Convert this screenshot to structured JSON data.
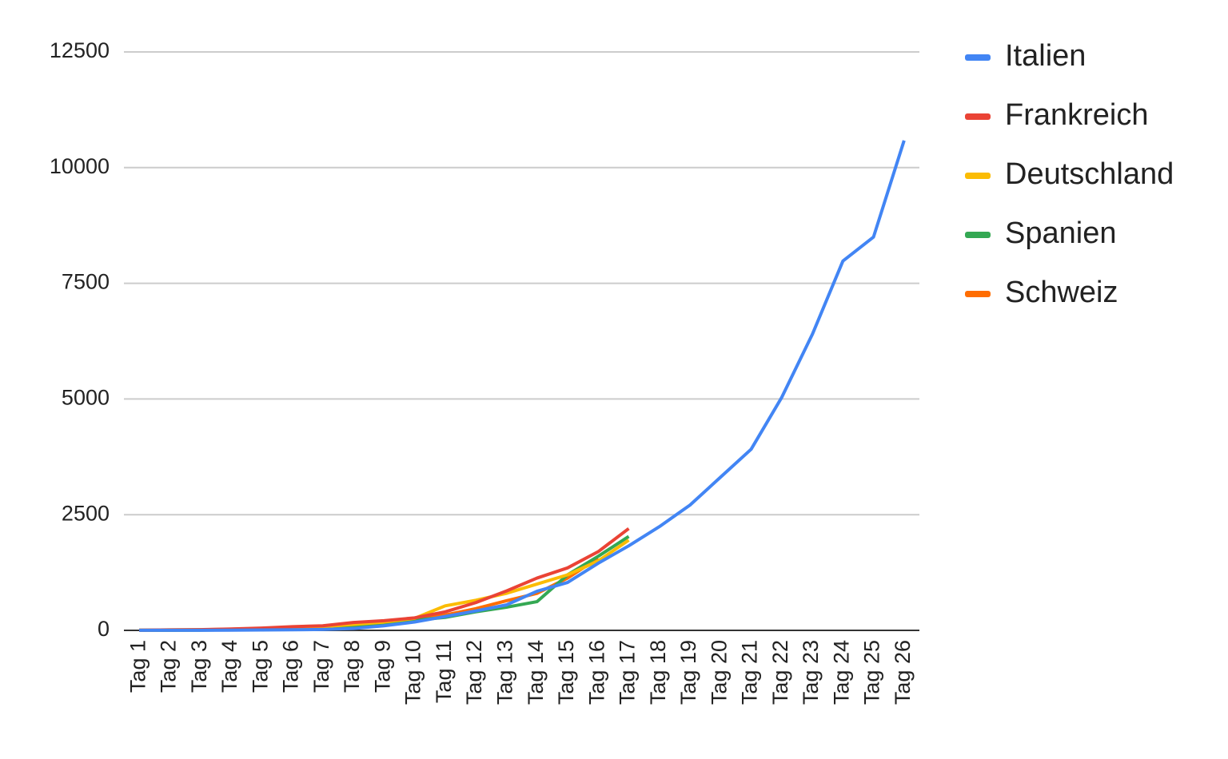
{
  "chart_data": {
    "type": "line",
    "categories": [
      "Tag 1",
      "Tag 2",
      "Tag 3",
      "Tag 4",
      "Tag 5",
      "Tag 6",
      "Tag 7",
      "Tag 8",
      "Tag 9",
      "Tag 10",
      "Tag 11",
      "Tag 12",
      "Tag 13",
      "Tag 14",
      "Tag 15",
      "Tag 16",
      "Tag 17",
      "Tag 18",
      "Tag 19",
      "Tag 20",
      "Tag 21",
      "Tag 22",
      "Tag 23",
      "Tag 24",
      "Tag 25",
      "Tag 26"
    ],
    "series": [
      {
        "name": "Italien",
        "color": "#4285f4",
        "values": [
          3,
          3,
          3,
          5,
          8,
          12,
          20,
          40,
          100,
          180,
          300,
          420,
          550,
          845,
          1035,
          1450,
          1827,
          2241,
          2707,
          3310,
          3914,
          5034,
          6396,
          7982,
          8500,
          10586
        ]
      },
      {
        "name": "Frankreich",
        "color": "#ea4335",
        "values": [
          5,
          10,
          15,
          30,
          50,
          80,
          100,
          170,
          210,
          270,
          400,
          600,
          850,
          1130,
          1350,
          1700,
          2200,
          null,
          null,
          null,
          null,
          null,
          null,
          null,
          null,
          null
        ]
      },
      {
        "name": "Deutschland",
        "color": "#fbbc04",
        "values": [
          5,
          10,
          15,
          25,
          40,
          60,
          80,
          130,
          180,
          260,
          530,
          650,
          800,
          1000,
          1200,
          1500,
          1950,
          null,
          null,
          null,
          null,
          null,
          null,
          null,
          null,
          null
        ]
      },
      {
        "name": "Spanien",
        "color": "#34a853",
        "values": [
          2,
          3,
          5,
          10,
          15,
          25,
          40,
          80,
          150,
          220,
          280,
          400,
          500,
          620,
          1200,
          1600,
          2030,
          null,
          null,
          null,
          null,
          null,
          null,
          null,
          null,
          null
        ]
      },
      {
        "name": "Schweiz",
        "color": "#ff6d01",
        "values": [
          1,
          5,
          10,
          20,
          35,
          55,
          80,
          150,
          200,
          250,
          330,
          470,
          640,
          800,
          1130,
          1560,
          null,
          null,
          null,
          null,
          null,
          null,
          null,
          null,
          null,
          null
        ]
      }
    ],
    "ylim": [
      0,
      12500
    ],
    "yticks": [
      0,
      2500,
      5000,
      7500,
      10000,
      12500
    ],
    "grid": true,
    "legend": "right"
  }
}
